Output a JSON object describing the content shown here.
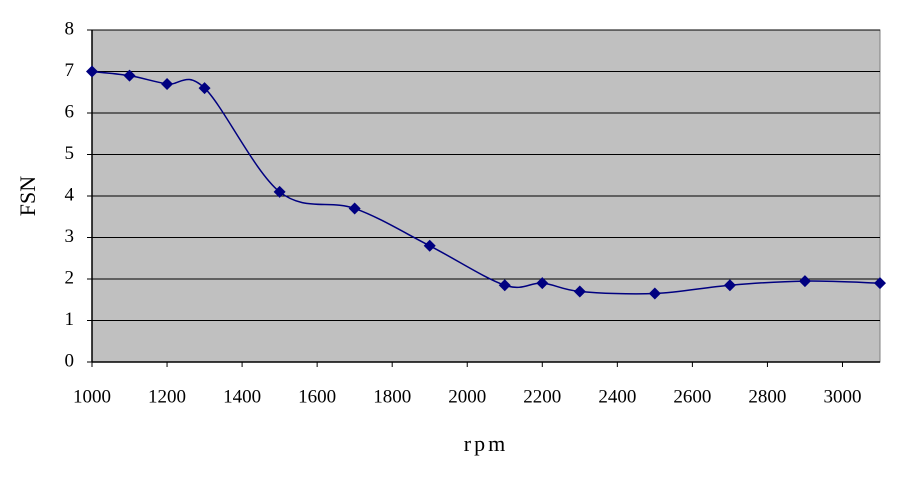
{
  "chart_data": {
    "type": "line",
    "x_label": "rpm",
    "y_label": "FSN",
    "x": [
      1000,
      1100,
      1200,
      1300,
      1500,
      1700,
      1900,
      2100,
      2200,
      2300,
      2500,
      2700,
      2900,
      3100
    ],
    "values": [
      7.0,
      6.9,
      6.7,
      6.6,
      4.1,
      3.7,
      2.8,
      1.85,
      1.9,
      1.7,
      1.65,
      1.85,
      1.95,
      1.9
    ],
    "color": "#000080",
    "background": "#c0c0c0",
    "grid": true,
    "xlim": [
      1000,
      3100
    ],
    "xticks": [
      1000,
      1200,
      1400,
      1600,
      1800,
      2000,
      2200,
      2400,
      2600,
      2800,
      3000
    ],
    "ylim": [
      0,
      8
    ],
    "yticks": [
      0,
      1,
      2,
      3,
      4,
      5,
      6,
      7,
      8
    ]
  }
}
